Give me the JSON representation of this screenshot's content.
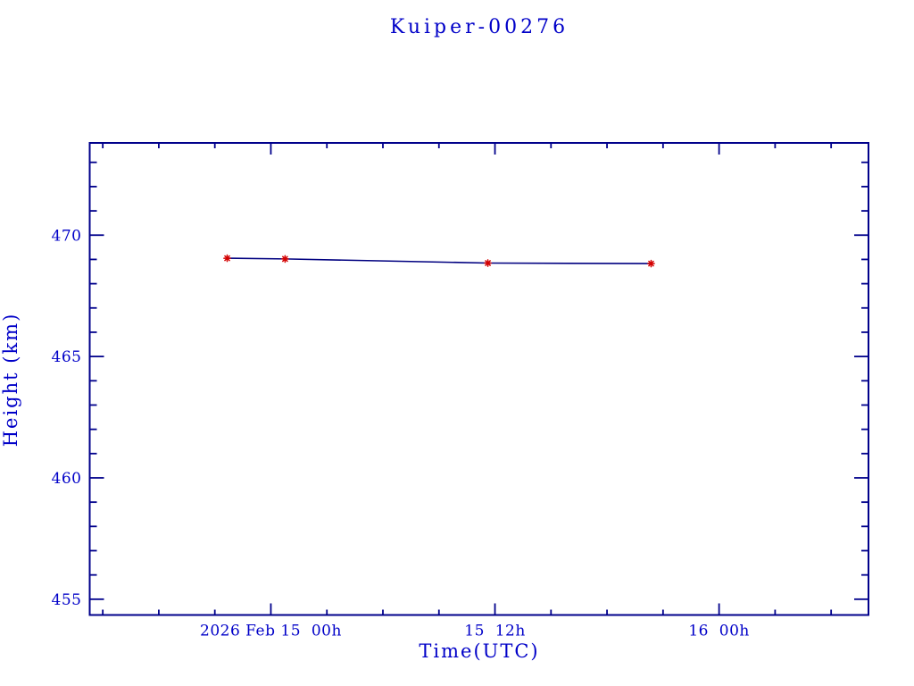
{
  "window": {
    "background_color": "#ffffff"
  },
  "chart_data": {
    "type": "line",
    "title": "Kuiper-00276",
    "xlabel": "Time(UTC)",
    "ylabel": "Height (km)",
    "x_unit": "hours since 2026 Feb 15 00h UTC",
    "xlim": [
      -9.7,
      32.0
    ],
    "ylim": [
      454.35,
      473.8
    ],
    "grid": false,
    "legend": "none",
    "x_major_ticks": [
      {
        "value": 0,
        "label": "2026 Feb 15  00h"
      },
      {
        "value": 12,
        "label": "15  12h"
      },
      {
        "value": 24,
        "label": "16  00h"
      }
    ],
    "x_minor_ticks": [
      -9,
      -6,
      -3,
      3,
      6,
      9,
      15,
      18,
      21,
      27,
      30
    ],
    "y_major_ticks": [
      {
        "value": 455,
        "label": "455"
      },
      {
        "value": 460,
        "label": "460"
      },
      {
        "value": 465,
        "label": "465"
      },
      {
        "value": 470,
        "label": "470"
      }
    ],
    "y_minor_ticks": [
      456,
      457,
      458,
      459,
      461,
      462,
      463,
      464,
      466,
      467,
      468,
      469,
      471,
      472,
      473
    ],
    "series": [
      {
        "name": "height",
        "marker": "asterisk",
        "points": [
          {
            "x": -2.34,
            "y": 469.05
          },
          {
            "x": 0.76,
            "y": 469.02
          },
          {
            "x": 11.62,
            "y": 468.85
          },
          {
            "x": 20.36,
            "y": 468.83
          }
        ]
      }
    ],
    "colors": {
      "text": "#0000c8",
      "axis_frame": "#00008b",
      "data_line": "#000080",
      "marker": "#d40000",
      "background": "#ffffff"
    }
  }
}
